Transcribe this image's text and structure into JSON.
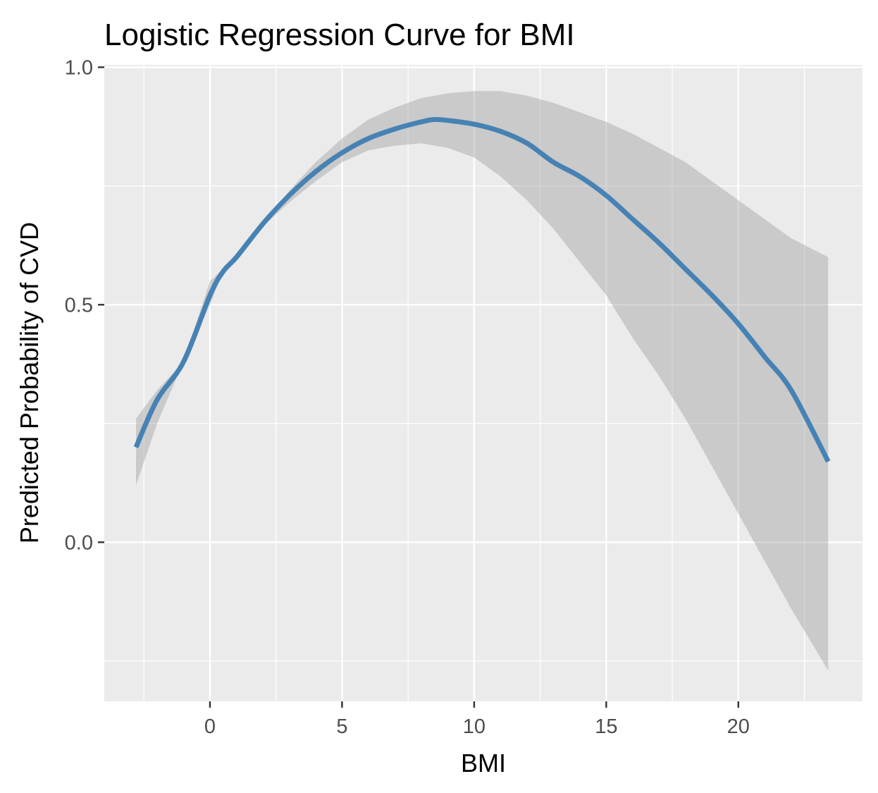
{
  "chart_data": {
    "type": "line",
    "title": "Logistic Regression Curve for BMI",
    "xlabel": "BMI",
    "ylabel": "Predicted Probability of CVD",
    "xlim": [
      -4,
      24.7
    ],
    "ylim": [
      -0.335,
      1.005
    ],
    "x_ticks": [
      0,
      5,
      10,
      15,
      20
    ],
    "x_tick_labels": [
      "0",
      "5",
      "10",
      "15",
      "20"
    ],
    "y_ticks": [
      0.0,
      0.5,
      1.0
    ],
    "y_tick_labels": [
      "0.0",
      "0.5",
      "1.0"
    ],
    "grid": true,
    "series": [
      {
        "type": "line",
        "color": "#4682b4",
        "x": [
          -2.8,
          -2,
          -1,
          0,
          0.5,
          1,
          2,
          3,
          4,
          5,
          6,
          7,
          8,
          8.5,
          9,
          10,
          11,
          12,
          13,
          14,
          15,
          16,
          17,
          18,
          19,
          20,
          21,
          22,
          23.4
        ],
        "y": [
          0.2,
          0.3,
          0.38,
          0.52,
          0.57,
          0.6,
          0.67,
          0.73,
          0.78,
          0.82,
          0.85,
          0.87,
          0.885,
          0.89,
          0.888,
          0.88,
          0.865,
          0.84,
          0.8,
          0.77,
          0.73,
          0.68,
          0.63,
          0.575,
          0.52,
          0.46,
          0.39,
          0.32,
          0.17
        ]
      },
      {
        "type": "ribbon",
        "color": "#999999",
        "x": [
          -2.8,
          -2,
          -1,
          0,
          0.5,
          1,
          2,
          3,
          4,
          5,
          6,
          7,
          8,
          9,
          10,
          11,
          12,
          13,
          14,
          15,
          16,
          17,
          18,
          19,
          20,
          21,
          22,
          23.4
        ],
        "lower": [
          0.12,
          0.25,
          0.38,
          0.5,
          0.57,
          0.6,
          0.665,
          0.715,
          0.76,
          0.8,
          0.825,
          0.835,
          0.84,
          0.83,
          0.81,
          0.77,
          0.72,
          0.66,
          0.59,
          0.52,
          0.43,
          0.35,
          0.26,
          0.16,
          0.06,
          -0.04,
          -0.14,
          -0.27
        ],
        "upper": [
          0.26,
          0.32,
          0.38,
          0.55,
          0.575,
          0.6,
          0.67,
          0.74,
          0.8,
          0.85,
          0.89,
          0.915,
          0.935,
          0.945,
          0.95,
          0.95,
          0.94,
          0.925,
          0.905,
          0.885,
          0.86,
          0.83,
          0.8,
          0.76,
          0.72,
          0.68,
          0.64,
          0.6
        ]
      }
    ]
  }
}
